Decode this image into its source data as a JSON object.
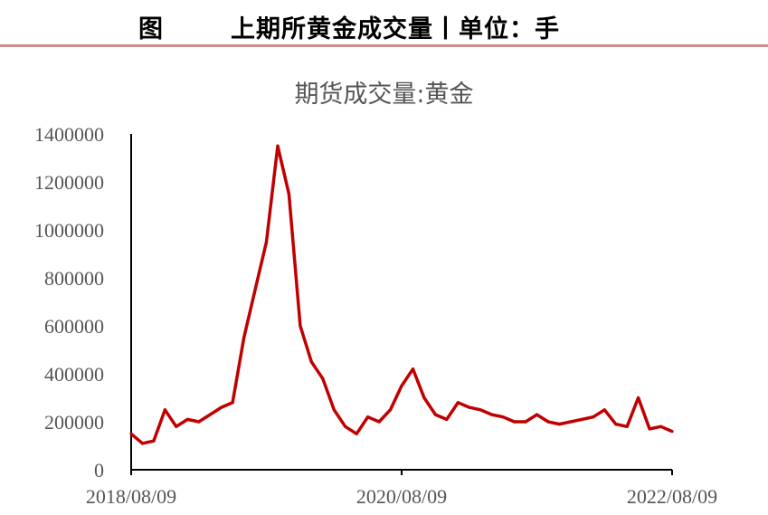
{
  "header": {
    "figure_label": "图",
    "title": "上期所黄金成交量丨单位：手"
  },
  "chart_data": {
    "type": "line",
    "title": "期货成交量:黄金",
    "xlabel": "",
    "ylabel": "",
    "ylim": [
      0,
      1400000
    ],
    "y_ticks": [
      "1400000",
      "1200000",
      "1000000",
      "800000",
      "600000",
      "400000",
      "200000",
      "0"
    ],
    "x_ticks": [
      "2018/08/09",
      "2020/08/09",
      "2022/08/09"
    ],
    "xlim": [
      "2018/08/09",
      "2022/08/09"
    ],
    "grid": false,
    "legend": "none",
    "series": [
      {
        "color": "#c00000",
        "x": [
          "2018/08",
          "2018/09",
          "2018/10",
          "2018/11",
          "2018/12",
          "2019/01",
          "2019/02",
          "2019/03",
          "2019/04",
          "2019/05",
          "2019/06",
          "2019/07",
          "2019/08",
          "2019/09",
          "2019/10",
          "2019/11",
          "2019/12",
          "2020/01",
          "2020/02",
          "2020/03",
          "2020/04",
          "2020/05",
          "2020/06",
          "2020/07",
          "2020/08",
          "2020/09",
          "2020/10",
          "2020/11",
          "2020/12",
          "2021/01",
          "2021/02",
          "2021/03",
          "2021/04",
          "2021/05",
          "2021/06",
          "2021/07",
          "2021/08",
          "2021/09",
          "2021/10",
          "2021/11",
          "2021/12",
          "2022/01",
          "2022/02",
          "2022/03",
          "2022/04",
          "2022/05",
          "2022/06",
          "2022/07",
          "2022/08"
        ],
        "values": [
          150000,
          110000,
          120000,
          250000,
          180000,
          210000,
          200000,
          230000,
          260000,
          280000,
          550000,
          750000,
          950000,
          1350000,
          1150000,
          600000,
          450000,
          380000,
          250000,
          180000,
          150000,
          220000,
          200000,
          250000,
          350000,
          420000,
          300000,
          230000,
          210000,
          280000,
          260000,
          250000,
          230000,
          220000,
          200000,
          200000,
          230000,
          200000,
          190000,
          200000,
          210000,
          220000,
          250000,
          190000,
          180000,
          300000,
          170000,
          180000,
          160000
        ]
      }
    ]
  }
}
